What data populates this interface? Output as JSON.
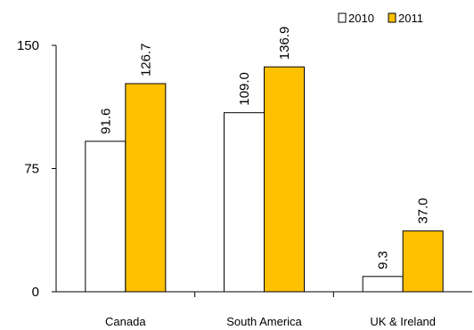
{
  "chart_data": {
    "type": "bar",
    "categories": [
      "Canada",
      "South America",
      "UK & Ireland"
    ],
    "series": [
      {
        "name": "2010",
        "values": [
          91.6,
          109.0,
          9.3
        ],
        "labels": [
          "91.6",
          "109.0",
          "9.3"
        ],
        "color": "#ffffff"
      },
      {
        "name": "2011",
        "values": [
          126.7,
          136.9,
          37.0
        ],
        "labels": [
          "126.7",
          "136.9",
          "37.0"
        ],
        "color": "#ffc000"
      }
    ],
    "yticks": [
      "0",
      "75",
      "150"
    ],
    "ylim": [
      0,
      150
    ],
    "legend_position": "top-right",
    "grid": false,
    "title": "",
    "xlabel": "",
    "ylabel": ""
  }
}
